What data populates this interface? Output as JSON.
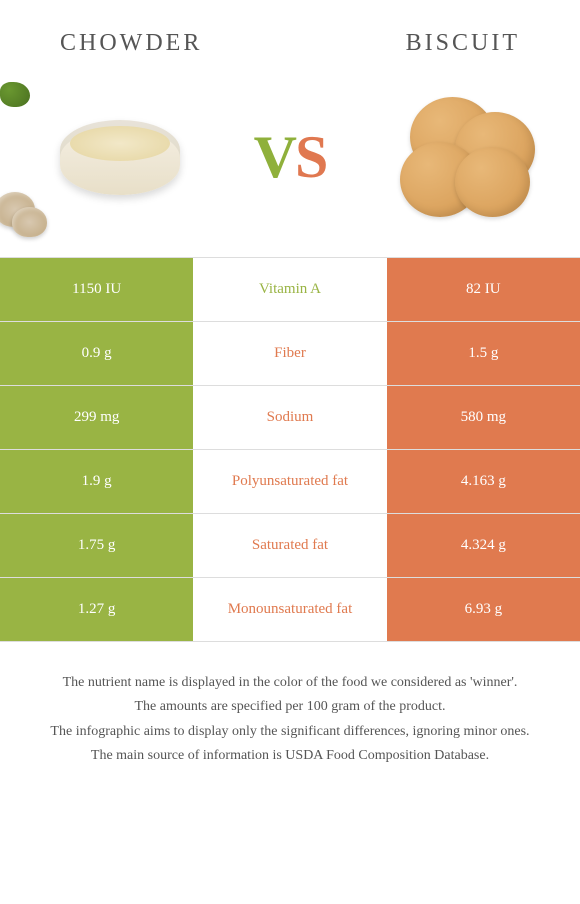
{
  "header": {
    "left_title": "CHOWDER",
    "right_title": "BISCUIT"
  },
  "vs": {
    "v": "V",
    "s": "S"
  },
  "colors": {
    "left": "#99b444",
    "right": "#e07a4f"
  },
  "rows": [
    {
      "left": "1150 IU",
      "label": "Vitamin A",
      "right": "82 IU",
      "winner": "left"
    },
    {
      "left": "0.9 g",
      "label": "Fiber",
      "right": "1.5 g",
      "winner": "right"
    },
    {
      "left": "299 mg",
      "label": "Sodium",
      "right": "580 mg",
      "winner": "right"
    },
    {
      "left": "1.9 g",
      "label": "Polyunsaturated fat",
      "right": "4.163 g",
      "winner": "right"
    },
    {
      "left": "1.75 g",
      "label": "Saturated fat",
      "right": "4.324 g",
      "winner": "right"
    },
    {
      "left": "1.27 g",
      "label": "Monounsaturated fat",
      "right": "6.93 g",
      "winner": "right"
    }
  ],
  "footnotes": [
    "The nutrient name is displayed in the color of the food we considered as 'winner'.",
    "The amounts are specified per 100 gram of the product.",
    "The infographic aims to display only the significant differences, ignoring minor ones.",
    "The main source of information is USDA Food Composition Database."
  ]
}
